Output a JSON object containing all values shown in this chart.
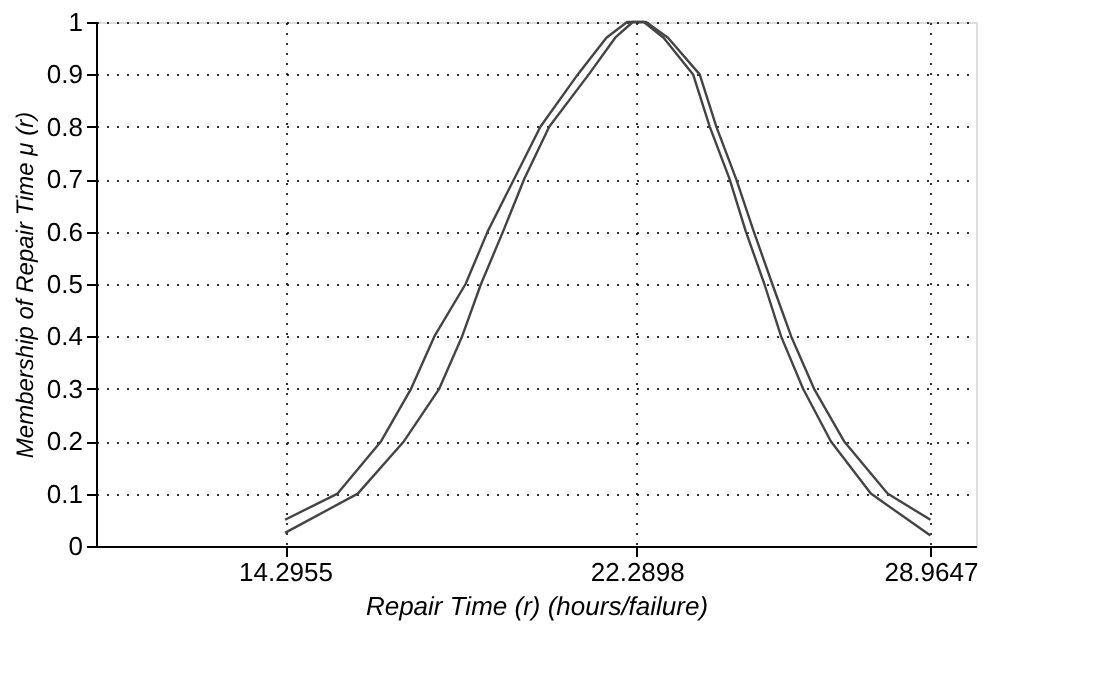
{
  "chart_data": {
    "type": "line",
    "xlabel": "Repair Time (r) (hours/failure)",
    "ylabel": "Membership of Repair Time μ (r)",
    "xlim": [
      10,
      30
    ],
    "xticks": [
      14.2955,
      22.2898,
      28.9647
    ],
    "ylim": [
      0,
      1
    ],
    "yticks": [
      0,
      0.1,
      0.2,
      0.3,
      0.4,
      0.5,
      0.6,
      0.7,
      0.8,
      0.9,
      1
    ],
    "grid": true,
    "line_style": "solid",
    "marker": "none",
    "legend": false,
    "series": [
      {
        "color": "#444444",
        "x": [
          14.2955,
          15.49,
          16.48,
          17.16,
          17.69,
          18.4,
          18.9,
          19.5,
          20.1,
          20.95,
          21.6,
          22.07,
          22.2898,
          22.5,
          23.0,
          23.72,
          24.1,
          24.55,
          24.95,
          25.37,
          25.8,
          26.32,
          27.0,
          27.99,
          28.9647
        ],
        "values": [
          0.05,
          0.1,
          0.2,
          0.3,
          0.4,
          0.5,
          0.6,
          0.7,
          0.8,
          0.9,
          0.97,
          1,
          1,
          1,
          0.97,
          0.9,
          0.8,
          0.7,
          0.6,
          0.5,
          0.4,
          0.3,
          0.2,
          0.1,
          0.05
        ]
      },
      {
        "color": "#444444",
        "x": [
          14.2955,
          15.95,
          17.0,
          17.8,
          18.32,
          18.75,
          19.25,
          19.73,
          20.3,
          21.2,
          21.8,
          22.2,
          22.2898,
          22.45,
          22.9,
          23.57,
          23.95,
          24.4,
          24.77,
          25.19,
          25.57,
          26.07,
          26.7,
          27.61,
          28.9647
        ],
        "values": [
          0.025,
          0.1,
          0.2,
          0.3,
          0.4,
          0.5,
          0.6,
          0.7,
          0.8,
          0.9,
          0.97,
          1,
          1,
          1,
          0.97,
          0.9,
          0.8,
          0.7,
          0.6,
          0.5,
          0.4,
          0.3,
          0.2,
          0.1,
          0.02
        ]
      }
    ]
  }
}
